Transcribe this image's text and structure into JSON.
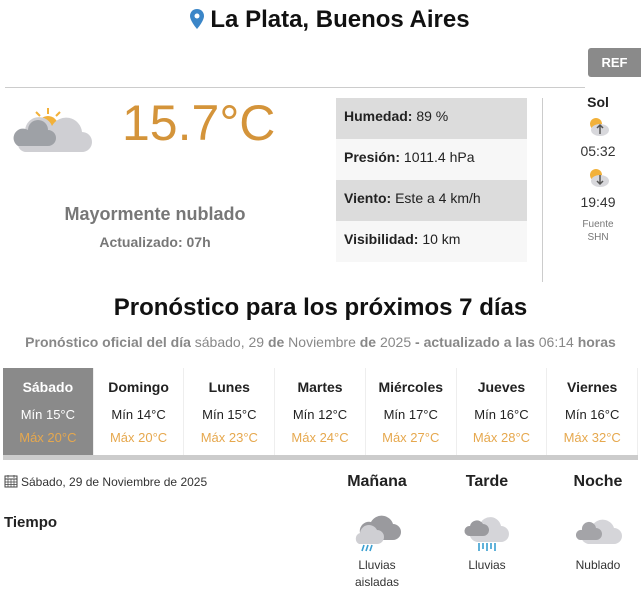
{
  "header": {
    "location": "La Plata, Buenos Aires",
    "ref_button": "REF",
    "location_icon": "map-pin-icon"
  },
  "current": {
    "icon": "partly-cloudy-icon",
    "temperature": "15.7°C",
    "condition": "Mayormente nublado",
    "updated": "Actualizado: 07h",
    "details": [
      {
        "label": "Humedad:",
        "value": " 89 %"
      },
      {
        "label": "Presión:",
        "value": " 1011.4 hPa"
      },
      {
        "label": "Viento:",
        "value": " Este a 4 km/h"
      },
      {
        "label": "Visibilidad:",
        "value": " 10 km"
      }
    ]
  },
  "sun": {
    "title": "Sol",
    "sunrise": "05:32",
    "sunset": "19:49",
    "source_line1": "Fuente",
    "source_line2": "SHN"
  },
  "forecast": {
    "title": "Pronóstico para los próximos 7 días",
    "subtitle": {
      "p1": "Pronóstico oficial del día",
      "date": " sábado, 29 ",
      "p2": "de",
      "month": " Noviembre ",
      "p3": "de",
      "year": " 2025 ",
      "p4": "- actualizado a las",
      "time": " 06:14 ",
      "p5": "horas"
    },
    "days": [
      {
        "name": "Sábado",
        "min": "Mín 15°C",
        "max": "Máx 20°C",
        "selected": true
      },
      {
        "name": "Domingo",
        "min": "Mín 14°C",
        "max": "Máx 20°C"
      },
      {
        "name": "Lunes",
        "min": "Mín 15°C",
        "max": "Máx 23°C"
      },
      {
        "name": "Martes",
        "min": "Mín 12°C",
        "max": "Máx 24°C"
      },
      {
        "name": "Miércoles",
        "min": "Mín 17°C",
        "max": "Máx 27°C"
      },
      {
        "name": "Jueves",
        "min": "Mín 16°C",
        "max": "Máx 28°C"
      },
      {
        "name": "Viernes",
        "min": "Mín 16°C",
        "max": "Máx 32°C"
      }
    ]
  },
  "detail": {
    "date": "Sábado, 29 de Noviembre de 2025",
    "row_label": "Tiempo",
    "periods": [
      {
        "name": "Mañana",
        "icon": "isolated-showers-icon",
        "label1": "Lluvias",
        "label2": "aisladas"
      },
      {
        "name": "Tarde",
        "icon": "rain-icon",
        "label1": "Lluvias",
        "label2": ""
      },
      {
        "name": "Noche",
        "icon": "cloudy-icon",
        "label1": "Nublado",
        "label2": ""
      }
    ]
  },
  "colors": {
    "temperature": "#d4943a",
    "max_temp": "#e6a84e",
    "selected_day": "#8a8a8a",
    "pin": "#3b86c8"
  }
}
